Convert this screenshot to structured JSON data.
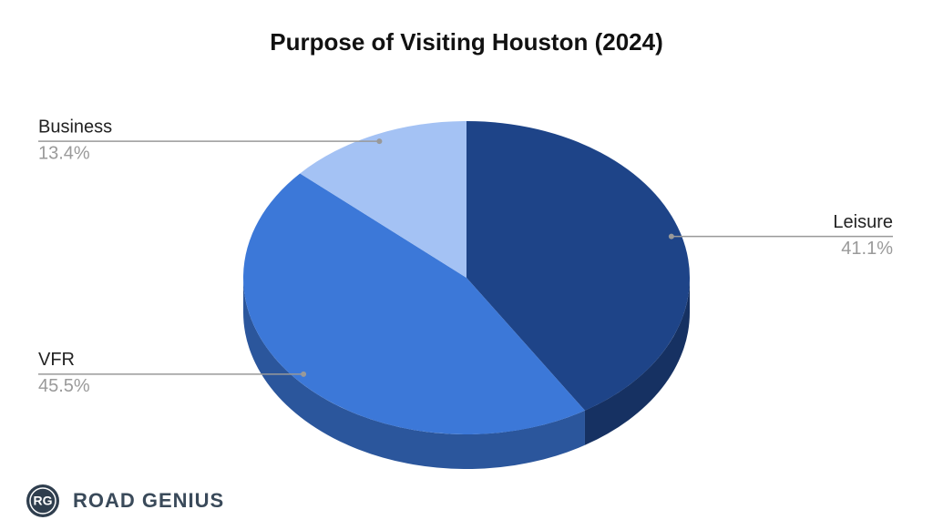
{
  "chart_data": {
    "type": "pie3d",
    "title": "Purpose of Visiting Houston (2024)",
    "categories": [
      "Leisure",
      "VFR",
      "Business"
    ],
    "values": [
      41.1,
      45.5,
      13.4
    ],
    "value_labels": [
      "41.1%",
      "45.5%",
      "13.4%"
    ],
    "colors": [
      "#1e4488",
      "#3c78d8",
      "#a4c2f4"
    ]
  },
  "logo": {
    "initials": "RG",
    "name": "ROAD GENIUS"
  }
}
